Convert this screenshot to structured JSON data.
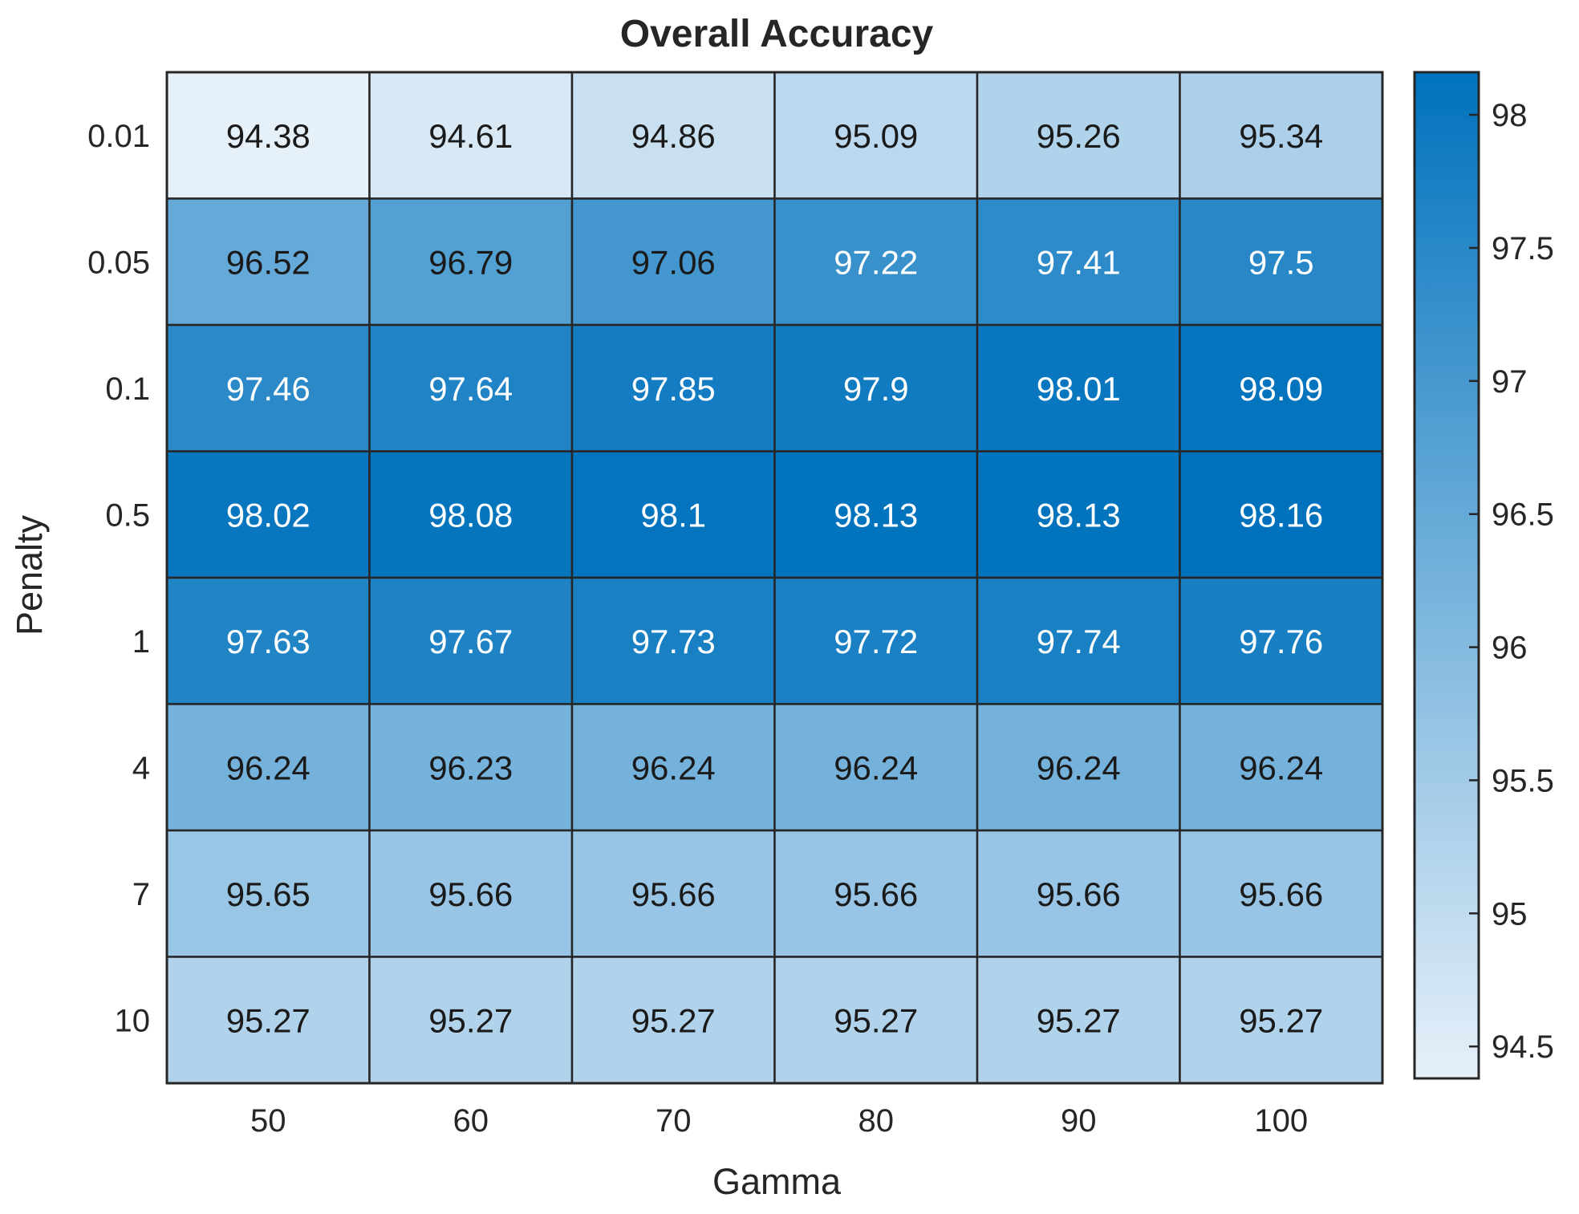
{
  "chart_data": {
    "type": "heatmap",
    "title": "Overall Accuracy",
    "xlabel": "Gamma",
    "ylabel": "Penalty",
    "x_categories": [
      "50",
      "60",
      "70",
      "80",
      "90",
      "100"
    ],
    "y_categories": [
      "0.01",
      "0.05",
      "0.1",
      "0.5",
      "1",
      "4",
      "7",
      "10"
    ],
    "values": [
      [
        94.38,
        94.61,
        94.86,
        95.09,
        95.26,
        95.34
      ],
      [
        96.52,
        96.79,
        97.06,
        97.22,
        97.41,
        97.5
      ],
      [
        97.46,
        97.64,
        97.85,
        97.9,
        98.01,
        98.09
      ],
      [
        98.02,
        98.08,
        98.1,
        98.13,
        98.13,
        98.16
      ],
      [
        97.63,
        97.67,
        97.73,
        97.72,
        97.74,
        97.76
      ],
      [
        96.24,
        96.23,
        96.24,
        96.24,
        96.24,
        96.24
      ],
      [
        95.65,
        95.66,
        95.66,
        95.66,
        95.66,
        95.66
      ],
      [
        95.27,
        95.27,
        95.27,
        95.27,
        95.27,
        95.27
      ]
    ],
    "colorbar": {
      "min": 94.38,
      "max": 98.16,
      "ticks": [
        "94.5",
        "95",
        "95.5",
        "96",
        "96.5",
        "97",
        "97.5",
        "98"
      ],
      "color_low": "#e6f0f9",
      "color_high": "#0072bd"
    },
    "grid": true,
    "cell_text_threshold": 97.1
  }
}
